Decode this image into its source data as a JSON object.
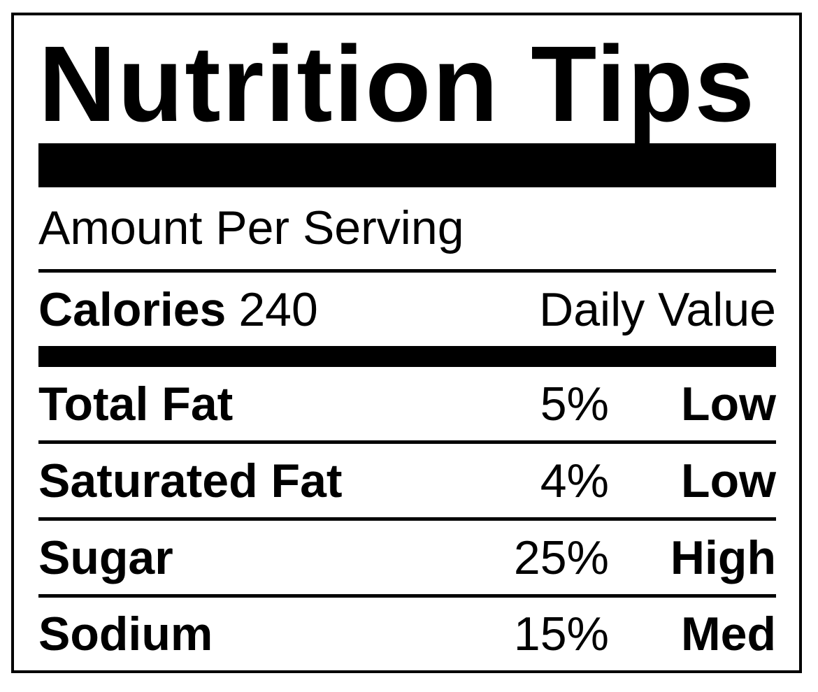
{
  "title": "Nutrition Tips",
  "serving_header": "Amount Per Serving",
  "calories": {
    "label": "Calories",
    "value": "240"
  },
  "daily_value_header": "Daily Value",
  "nutrients": [
    {
      "name": "Total Fat",
      "percent": "5%",
      "level": "Low"
    },
    {
      "name": "Saturated Fat",
      "percent": "4%",
      "level": "Low"
    },
    {
      "name": "Sugar",
      "percent": "25%",
      "level": "High"
    },
    {
      "name": "Sodium",
      "percent": "15%",
      "level": "Med"
    }
  ],
  "colors": {
    "ink": "#000000",
    "background": "#ffffff"
  }
}
